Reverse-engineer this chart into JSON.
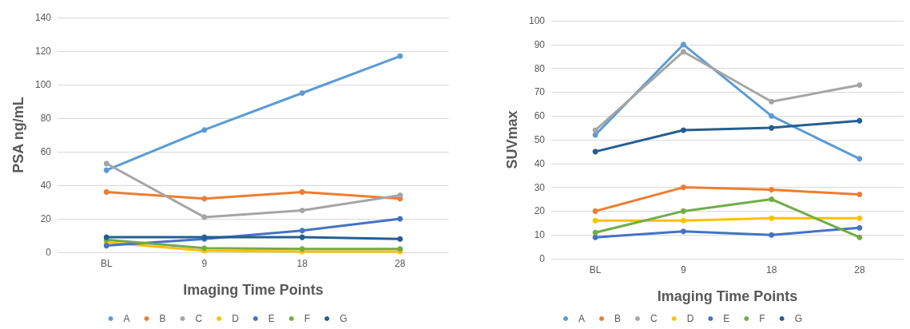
{
  "chart_data": [
    {
      "type": "line",
      "xlabel": "Imaging Time Points",
      "ylabel": "PSA ng/mL",
      "categories": [
        "BL",
        "9",
        "18",
        "28"
      ],
      "ylim": [
        0,
        140
      ],
      "yticks": [
        0,
        20,
        40,
        60,
        80,
        100,
        120,
        140
      ],
      "grid": "y",
      "legend": "bottom",
      "marker": "circle",
      "line_style": "solid",
      "series": [
        {
          "name": "A",
          "color": "#5b9bd5",
          "values": [
            49,
            73,
            95,
            117
          ]
        },
        {
          "name": "B",
          "color": "#ed7d31",
          "values": [
            36,
            32,
            36,
            32
          ]
        },
        {
          "name": "C",
          "color": "#a5a5a5",
          "values": [
            53,
            21,
            25,
            34
          ]
        },
        {
          "name": "D",
          "color": "#ffc000",
          "values": [
            6,
            1,
            0.5,
            0.5
          ]
        },
        {
          "name": "E",
          "color": "#4472c4",
          "values": [
            4,
            8,
            13,
            20
          ]
        },
        {
          "name": "F",
          "color": "#70ad47",
          "values": [
            7.5,
            2.5,
            2,
            2
          ]
        },
        {
          "name": "G",
          "color": "#255e91",
          "values": [
            9,
            9,
            9,
            8
          ]
        }
      ]
    },
    {
      "type": "line",
      "xlabel": "Imaging Time Points",
      "ylabel": "SUVmax",
      "categories": [
        "BL",
        "9",
        "18",
        "28"
      ],
      "ylim": [
        0,
        100
      ],
      "yticks": [
        0,
        10,
        20,
        30,
        40,
        50,
        60,
        70,
        80,
        90,
        100
      ],
      "grid": "y",
      "legend": "bottom",
      "marker": "circle",
      "line_style": "solid",
      "series": [
        {
          "name": "A",
          "color": "#5b9bd5",
          "values": [
            52,
            90,
            60,
            42
          ]
        },
        {
          "name": "B",
          "color": "#ed7d31",
          "values": [
            20,
            30,
            29,
            27
          ]
        },
        {
          "name": "C",
          "color": "#a5a5a5",
          "values": [
            54,
            87,
            66,
            73
          ]
        },
        {
          "name": "D",
          "color": "#ffc000",
          "values": [
            16,
            16,
            17,
            17
          ]
        },
        {
          "name": "E",
          "color": "#4472c4",
          "values": [
            9,
            11.5,
            10,
            13
          ]
        },
        {
          "name": "F",
          "color": "#70ad47",
          "values": [
            11,
            20,
            25,
            9
          ]
        },
        {
          "name": "G",
          "color": "#255e91",
          "values": [
            45,
            54,
            55,
            58
          ]
        }
      ]
    }
  ]
}
